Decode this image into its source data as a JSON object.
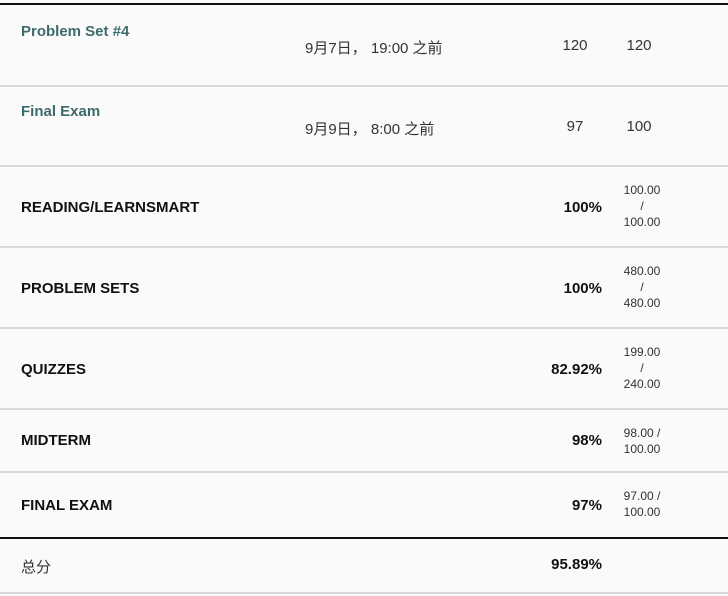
{
  "assignments": [
    {
      "name": "Problem Set #4",
      "due": "9月7日， 19:00 之前",
      "score": "120",
      "out_of": "120"
    },
    {
      "name": "Final Exam",
      "due": "9月9日， 8:00 之前",
      "score": "97",
      "out_of": "100"
    }
  ],
  "groups": [
    {
      "name": "READING/LEARNSMART",
      "percent": "100%",
      "points": "100.00",
      "sep": "/",
      "total": "100.00"
    },
    {
      "name": "PROBLEM SETS",
      "percent": "100%",
      "points": "480.00",
      "sep": "/",
      "total": "480.00"
    },
    {
      "name": "QUIZZES",
      "percent": "82.92%",
      "points": "199.00",
      "sep": "/",
      "total": "240.00"
    },
    {
      "name": "MIDTERM",
      "percent": "98%",
      "points": "98.00 /",
      "total": "100.00"
    },
    {
      "name": "FINAL EXAM",
      "percent": "97%",
      "points": "97.00 /",
      "total": "100.00"
    }
  ],
  "total": {
    "label": "总分",
    "percent": "95.89%"
  }
}
